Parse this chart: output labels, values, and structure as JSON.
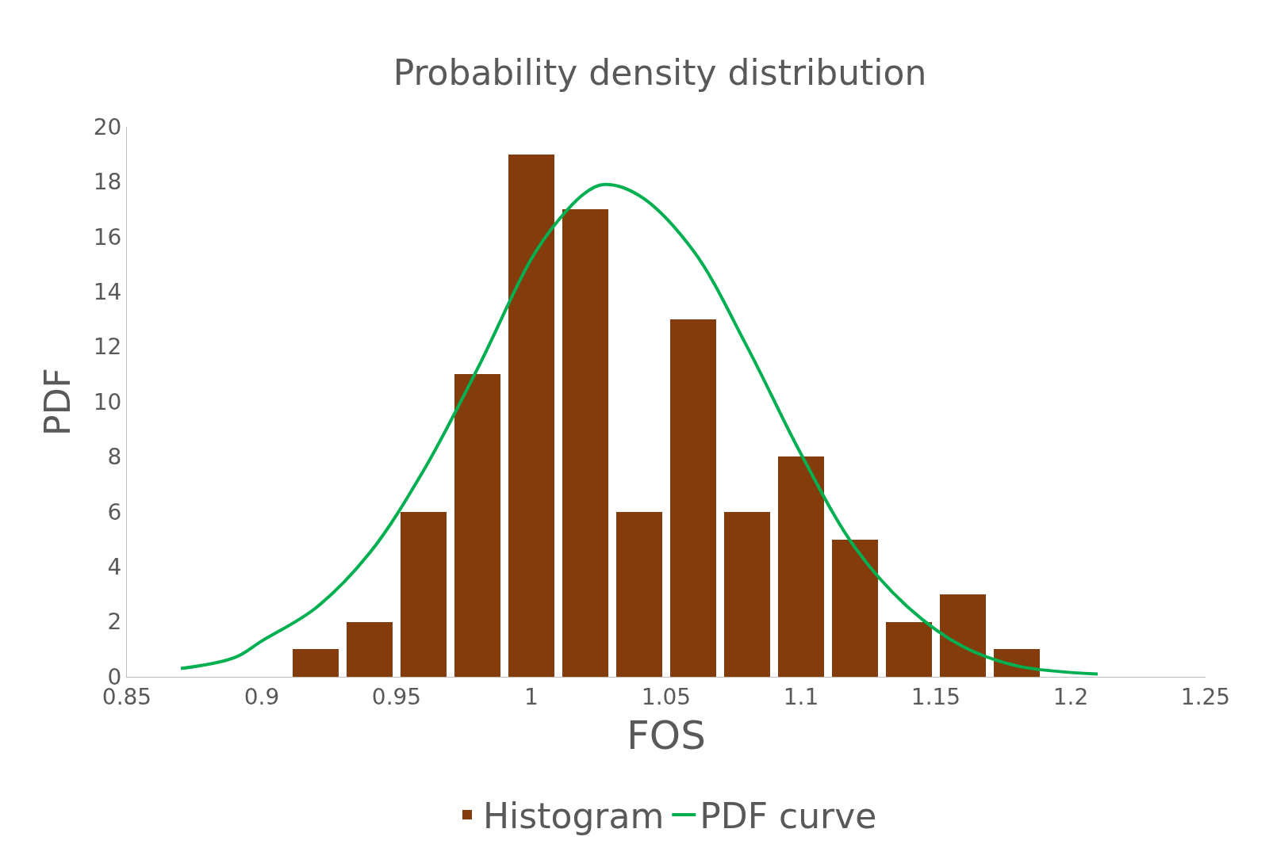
{
  "chart_data": {
    "type": "histogram",
    "title": "Probability density distribution",
    "xlabel": "FOS",
    "ylabel": "PDF",
    "bins": [
      0.91,
      0.93,
      0.95,
      0.97,
      0.99,
      1.01,
      1.03,
      1.05,
      1.07,
      1.09,
      1.11,
      1.13,
      1.15,
      1.17,
      1.19
    ],
    "series": [
      {
        "name": "Histogram",
        "color": "#843c0c",
        "values": [
          1,
          2,
          6,
          11,
          19,
          17,
          6,
          13,
          6,
          8,
          5,
          2,
          3,
          1
        ]
      },
      {
        "name": "PDF curve",
        "type": "line",
        "color": "#00b050",
        "x": [
          0.87,
          0.89,
          0.9,
          0.92,
          0.94,
          0.96,
          0.98,
          1.0,
          1.01,
          1.02,
          1.027,
          1.04,
          1.06,
          1.08,
          1.1,
          1.12,
          1.14,
          1.16,
          1.18,
          1.21
        ],
        "values": [
          0.3,
          0.7,
          1.3,
          2.5,
          4.5,
          7.5,
          11.2,
          15.2,
          16.6,
          17.6,
          17.9,
          17.5,
          15.5,
          12,
          8.1,
          4.7,
          2.5,
          1.1,
          0.4,
          0.1
        ]
      }
    ],
    "xlim": [
      0.85,
      1.25
    ],
    "xticks": [
      0.85,
      0.9,
      0.95,
      1,
      1.05,
      1.1,
      1.15,
      1.2,
      1.25
    ],
    "ylim": [
      0,
      20
    ],
    "yticks": [
      0,
      2,
      4,
      6,
      8,
      10,
      12,
      14,
      16,
      18,
      20
    ],
    "legend": "bottom",
    "marker": "none",
    "line_style": "solid"
  }
}
